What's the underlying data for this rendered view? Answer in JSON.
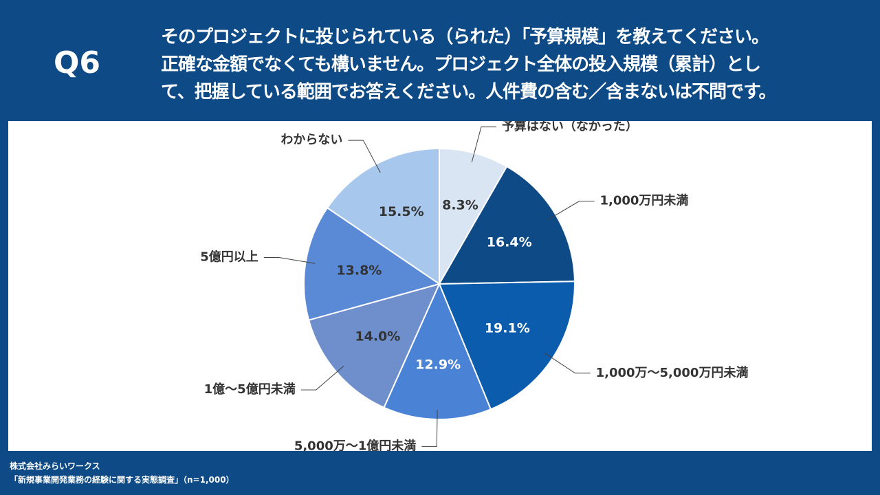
{
  "header": {
    "question_number": "Q6",
    "question_lines": [
      "そのプロジェクトに投じられている（られた）「予算規模」を教えてください。",
      "正確な金額でなくても構いません。プロジェクト全体の投入規模（累計）とし",
      "て、把握している範囲でお答えください。人件費の含む／含まないは不問です。"
    ]
  },
  "chart_data": {
    "type": "pie",
    "start_angle_deg": 0,
    "direction": "clockwise",
    "slices": [
      {
        "label": "予算はない（なかった）",
        "value": 8.3,
        "display": "8.3%",
        "color": "#dae5f4",
        "text_color": "#333333",
        "label_side": "right"
      },
      {
        "label": "1,000万円未満",
        "value": 16.4,
        "display": "16.4%",
        "color": "#0d4a86",
        "text_color": "#ffffff",
        "label_side": "right"
      },
      {
        "label": "1,000万～5,000万円未満",
        "value": 19.1,
        "display": "19.1%",
        "color": "#0b5cad",
        "text_color": "#ffffff",
        "label_side": "right"
      },
      {
        "label": "5,000万～1億円未満",
        "value": 12.9,
        "display": "12.9%",
        "color": "#4a82d6",
        "text_color": "#ffffff",
        "label_side": "left"
      },
      {
        "label": "1億～5億円未満",
        "value": 14.0,
        "display": "14.0%",
        "color": "#6f8fcc",
        "text_color": "#333333",
        "label_side": "left"
      },
      {
        "label": "5億円以上",
        "value": 13.8,
        "display": "13.8%",
        "color": "#5a8ad6",
        "text_color": "#333333",
        "label_side": "left"
      },
      {
        "label": "わからない",
        "value": 15.5,
        "display": "15.5%",
        "color": "#a7c8ec",
        "text_color": "#333333",
        "label_side": "left"
      }
    ]
  },
  "footer": {
    "company": "株式会社みらいワークス",
    "source": "「新規事業開発業務の経験に関する実態調査」（n=1,000）"
  }
}
